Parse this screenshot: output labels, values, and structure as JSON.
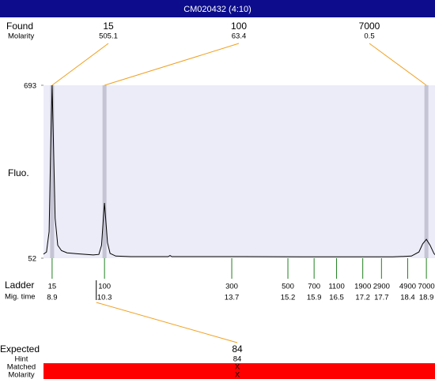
{
  "title": "CM020432 (4:10)",
  "chart_data": {
    "type": "electropherogram",
    "y_label": "Fluo.",
    "xlim": [
      8.67,
      19.13
    ],
    "ylim": [
      52,
      693
    ],
    "yticks": [
      693,
      52
    ],
    "trace": {
      "x": [
        8.67,
        8.75,
        8.82,
        8.86,
        8.9,
        8.94,
        8.98,
        9.05,
        9.15,
        9.3,
        9.6,
        10.0,
        10.15,
        10.22,
        10.27,
        10.3,
        10.33,
        10.38,
        10.45,
        10.6,
        11.0,
        12.0,
        12.05,
        12.1,
        14,
        16,
        18.0,
        18.5,
        18.7,
        18.8,
        18.9,
        19.0,
        19.1,
        19.13
      ],
      "y": [
        67,
        75,
        150,
        450,
        693,
        450,
        200,
        100,
        80,
        72,
        68,
        64,
        66,
        100,
        200,
        257,
        200,
        110,
        70,
        60,
        58,
        58,
        62,
        58,
        58,
        57,
        57,
        60,
        75,
        105,
        122,
        100,
        70,
        65
      ]
    },
    "found": {
      "label": "Found",
      "sub_label": "Molarity",
      "sizes": [
        15,
        100,
        7000
      ],
      "molarity": [
        505.1,
        63.4,
        0.5
      ]
    },
    "ladder": {
      "label": "Ladder",
      "sub_label": "Mig. time",
      "sizes": [
        15,
        100,
        300,
        500,
        700,
        1100,
        1900,
        2900,
        4900,
        7000
      ],
      "mig_times": [
        8.9,
        10.3,
        13.7,
        15.2,
        15.9,
        16.5,
        17.2,
        17.7,
        18.4,
        18.9
      ]
    },
    "expected": {
      "label": "Expected",
      "value": 84,
      "mig_time": 10.08,
      "rows": [
        {
          "label": "Hint",
          "value": "84"
        },
        {
          "label": "Matched",
          "value": "X"
        },
        {
          "label": "Molarity",
          "value": "X"
        }
      ]
    }
  }
}
